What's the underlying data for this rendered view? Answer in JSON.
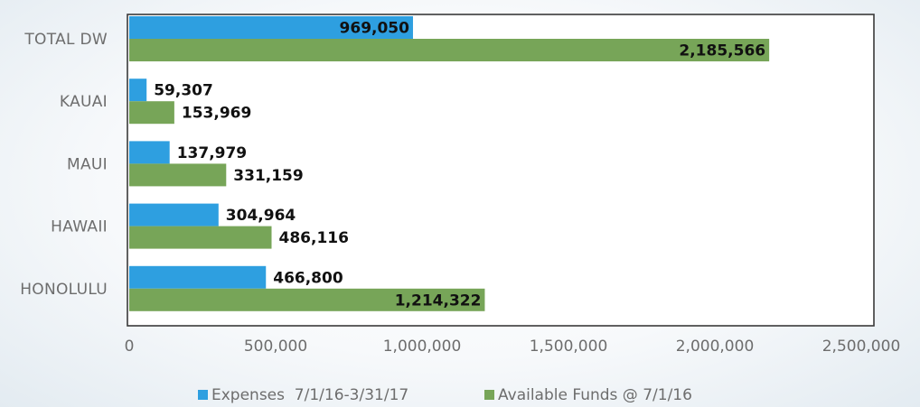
{
  "chart_data": {
    "type": "bar",
    "orientation": "horizontal",
    "categories": [
      "TOTAL DW",
      "KAUAI",
      "MAUI",
      "HAWAII",
      "HONOLULU"
    ],
    "series": [
      {
        "name": "Expenses  7/1/16-3/31/17",
        "color": "#2e9fe0",
        "values": [
          969050,
          59307,
          137979,
          304964,
          466800
        ],
        "labels": [
          "969,050",
          "59,307",
          "137,979",
          "304,964",
          "466,800"
        ]
      },
      {
        "name": "Available Funds @ 7/1/16",
        "color": "#77a558",
        "values": [
          2185566,
          153969,
          331159,
          486116,
          1214322
        ],
        "labels": [
          "2,185,566",
          "153,969",
          "331,159",
          "486,116",
          "1,214,322"
        ]
      }
    ],
    "xlim": [
      0,
      2500000
    ],
    "x_ticks": [
      0,
      500000,
      1000000,
      1500000,
      2000000,
      2500000
    ],
    "x_tick_labels": [
      "0",
      "500,000",
      "1,000,000",
      "1,500,000",
      "2,000,000",
      "2,500,000"
    ],
    "grid": false,
    "legend_position": "bottom",
    "title": "",
    "xlabel": "",
    "ylabel": ""
  }
}
